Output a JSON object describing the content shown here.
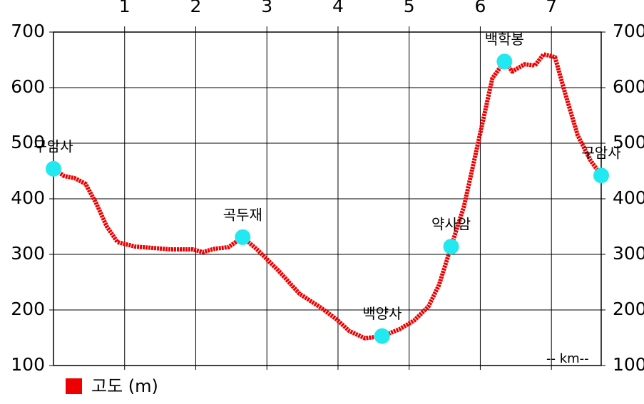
{
  "chart_data": {
    "type": "line",
    "xlabel": "-- km--",
    "x": [
      0,
      0.15,
      0.3,
      0.45,
      0.6,
      0.75,
      0.9,
      1.15,
      1.65,
      1.96,
      2.1,
      2.26,
      2.46,
      2.66,
      2.86,
      3.16,
      3.46,
      3.76,
      3.98,
      4.16,
      4.38,
      4.62,
      4.86,
      5.07,
      5.27,
      5.42,
      5.59,
      5.77,
      5.97,
      6.17,
      6.34,
      6.45,
      6.62,
      6.77,
      6.89,
      7.05,
      7.19,
      7.37,
      7.55,
      7.7
    ],
    "series": [
      {
        "name": "고도 (m)",
        "color": "#ee0000",
        "values": [
          454,
          441,
          437,
          427,
          392,
          350,
          322,
          314,
          309,
          309,
          304,
          310,
          313,
          331,
          309,
          271,
          229,
          204,
          183,
          162,
          149,
          153,
          165,
          181,
          206,
          245,
          314,
          386,
          501,
          617,
          647,
          629,
          642,
          640,
          660,
          655,
          591,
          514,
          469,
          442
        ]
      }
    ],
    "markers": [
      {
        "label": "구암사",
        "x": 0,
        "y": 454
      },
      {
        "label": "곡두재",
        "x": 2.66,
        "y": 331
      },
      {
        "label": "백양사",
        "x": 4.62,
        "y": 153
      },
      {
        "label": "약사암",
        "x": 5.59,
        "y": 314
      },
      {
        "label": "백학봉",
        "x": 6.34,
        "y": 647
      },
      {
        "label": "구암사",
        "x": 7.7,
        "y": 442
      }
    ],
    "marker_color": "#22e8f0",
    "xlim": [
      0,
      7.7
    ],
    "xticks": [
      1,
      2,
      3,
      4,
      5,
      6,
      7
    ],
    "ylim": [
      100,
      700
    ],
    "yticks": [
      100,
      200,
      300,
      400,
      500,
      600,
      700
    ],
    "y2lim": [
      100,
      700
    ],
    "y2ticks": [
      100,
      200,
      300,
      400,
      500,
      600,
      700
    ],
    "grid": true
  }
}
